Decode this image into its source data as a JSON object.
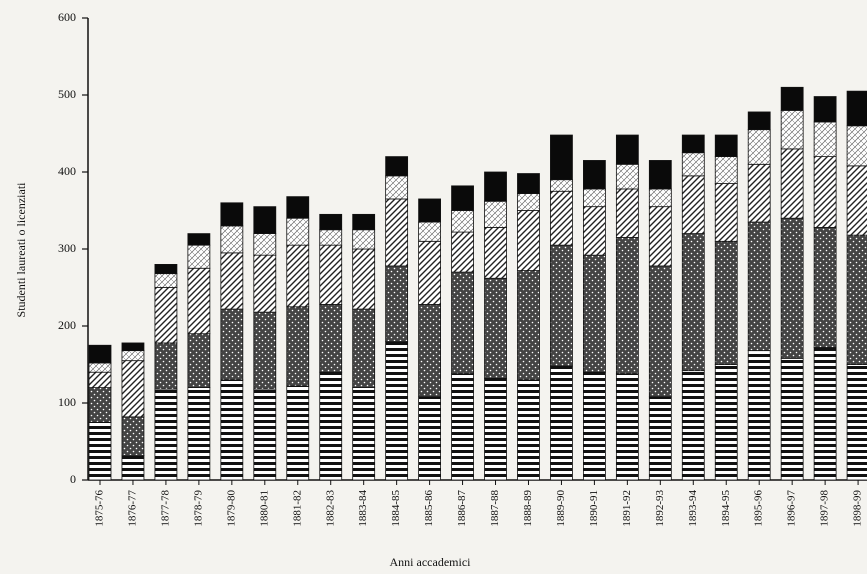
{
  "chart_data": {
    "type": "stacked_bar",
    "xlabel": "Anni accademici",
    "ylabel": "Studenti laureati o licenziati",
    "categories": [
      "1875-76",
      "1876-77",
      "1877-78",
      "1878-79",
      "1879-80",
      "1880-81",
      "1881-82",
      "1882-83",
      "1883-84",
      "1884-85",
      "1885-86",
      "1886-87",
      "1887-88",
      "1888-89",
      "1889-90",
      "1890-91",
      "1891-92",
      "1892-93",
      "1893-94",
      "1894-95",
      "1895-96",
      "1896-97",
      "1897-98",
      "1898-99"
    ],
    "series": [
      {
        "color": "#111111",
        "values": [
          75,
          32,
          118,
          120,
          130,
          118,
          122,
          140,
          120,
          180,
          108,
          138,
          132,
          130,
          148,
          140,
          138,
          108,
          142,
          150,
          168,
          158,
          172,
          150
        ]
      },
      {
        "color": "#444444",
        "values": [
          45,
          50,
          60,
          70,
          92,
          100,
          103,
          88,
          102,
          98,
          120,
          132,
          130,
          142,
          157,
          152,
          177,
          170,
          178,
          160,
          167,
          182,
          156,
          168
        ]
      },
      {
        "color": "#222222",
        "values": [
          20,
          73,
          72,
          85,
          73,
          74,
          80,
          77,
          78,
          87,
          82,
          52,
          66,
          78,
          70,
          63,
          63,
          77,
          75,
          75,
          75,
          90,
          92,
          90
        ]
      },
      {
        "color": "#666666",
        "values": [
          12,
          13,
          18,
          30,
          35,
          28,
          35,
          20,
          25,
          30,
          25,
          28,
          34,
          22,
          15,
          23,
          32,
          23,
          30,
          35,
          45,
          50,
          45,
          52
        ]
      },
      {
        "color": "#0a0a0a",
        "values": [
          23,
          10,
          12,
          15,
          30,
          35,
          28,
          20,
          20,
          25,
          30,
          32,
          38,
          26,
          58,
          37,
          38,
          37,
          23,
          28,
          23,
          30,
          33,
          45
        ]
      }
    ],
    "ylim": [
      0,
      600
    ],
    "yticks": [
      0,
      100,
      200,
      300,
      400,
      500,
      600
    ]
  }
}
